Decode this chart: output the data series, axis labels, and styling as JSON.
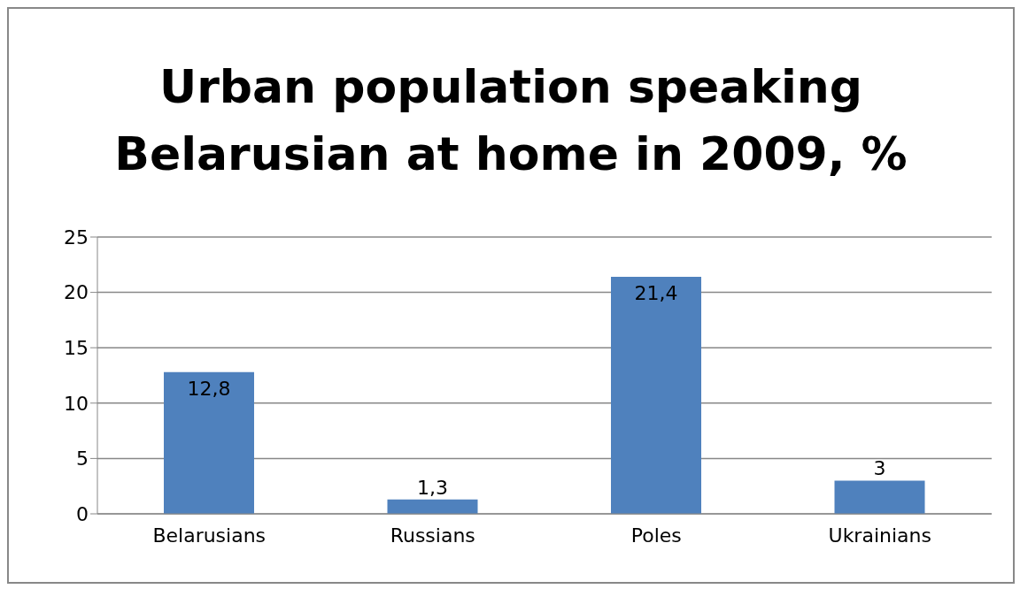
{
  "chart_data": {
    "type": "bar",
    "title": "Urban population speaking Belarusian at home in 2009, %",
    "categories": [
      "Belarusians",
      "Russians",
      "Poles",
      "Ukrainians"
    ],
    "values": [
      12.8,
      1.3,
      21.4,
      3
    ],
    "value_labels": [
      "12,8",
      "1,3",
      "21,4",
      "3"
    ],
    "color": "#4f81bd",
    "ylim": [
      0,
      25
    ],
    "yticks": [
      0,
      5,
      10,
      15,
      20,
      25
    ],
    "grid": "y"
  }
}
